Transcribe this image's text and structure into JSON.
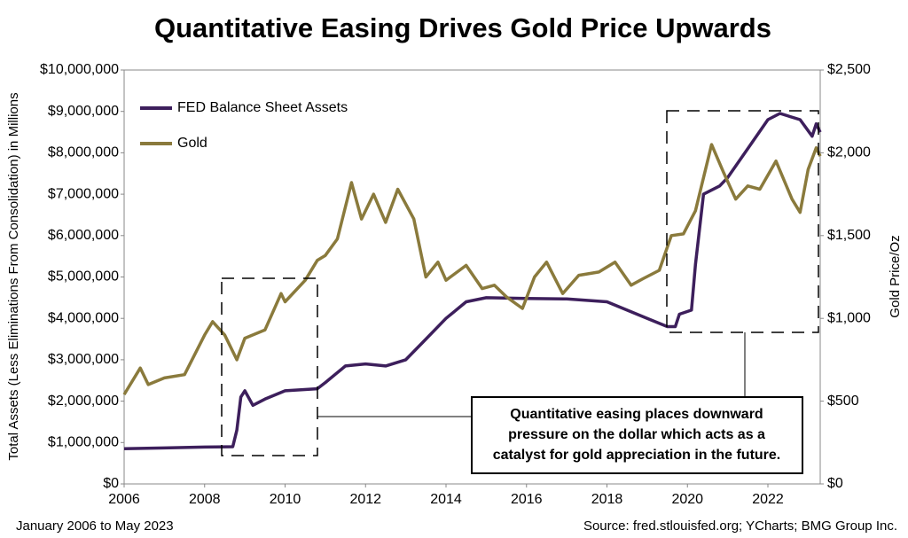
{
  "chart_data": {
    "type": "line",
    "title": "Quantitative Easing Drives Gold Price Upwards",
    "y_label": "Total Assets (Less Eliminations From Consolidation) in Millions",
    "y2_label": "Gold Price/Oz",
    "date_range": "January 2006 to May 2023",
    "source": "Source: fred.stlouisfed.org; YCharts; BMG Group Inc.",
    "annotation": [
      "Quantitative easing places downward",
      "pressure on the dollar which acts as a",
      "catalyst for gold appreciation in the future."
    ],
    "xlim": [
      2006,
      2023.3
    ],
    "xticks": [
      2006,
      2008,
      2010,
      2012,
      2014,
      2016,
      2018,
      2020,
      2022
    ],
    "ylim": [
      0,
      10000000
    ],
    "yticks": [
      {
        "value": 0,
        "label": "$0"
      },
      {
        "value": 1000000,
        "label": "$1,000,000"
      },
      {
        "value": 2000000,
        "label": "$2,000,000"
      },
      {
        "value": 3000000,
        "label": "$3,000,000"
      },
      {
        "value": 4000000,
        "label": "$4,000,000"
      },
      {
        "value": 5000000,
        "label": "$5,000,000"
      },
      {
        "value": 6000000,
        "label": "$6,000,000"
      },
      {
        "value": 7000000,
        "label": "$7,000,000"
      },
      {
        "value": 8000000,
        "label": "$8,000,000"
      },
      {
        "value": 9000000,
        "label": "$9,000,000"
      },
      {
        "value": 10000000,
        "label": "$10,000,000"
      }
    ],
    "y2lim": [
      0,
      2500
    ],
    "y2ticks": [
      {
        "value": 0,
        "label": "$0"
      },
      {
        "value": 500,
        "label": "$500"
      },
      {
        "value": 1000,
        "label": "$1,000"
      },
      {
        "value": 1500,
        "label": "$1,500"
      },
      {
        "value": 2000,
        "label": "$2,000"
      },
      {
        "value": 2500,
        "label": "$2,500"
      }
    ],
    "series": [
      {
        "name": "FED Balance Sheet Assets",
        "color": "#3d1f5c",
        "axis": "y",
        "x": [
          2006.0,
          2007.0,
          2008.0,
          2008.7,
          2008.8,
          2008.9,
          2009.0,
          2009.2,
          2009.5,
          2010.0,
          2010.8,
          2011.0,
          2011.5,
          2012.0,
          2012.5,
          2013.0,
          2013.5,
          2014.0,
          2014.5,
          2015.0,
          2016.0,
          2017.0,
          2018.0,
          2018.5,
          2019.0,
          2019.5,
          2019.7,
          2019.8,
          2020.1,
          2020.2,
          2020.4,
          2020.8,
          2021.0,
          2021.5,
          2022.0,
          2022.3,
          2022.8,
          2023.1,
          2023.2,
          2023.3
        ],
        "values": [
          850000,
          870000,
          890000,
          900000,
          1300000,
          2100000,
          2250000,
          1900000,
          2050000,
          2250000,
          2300000,
          2450000,
          2850000,
          2900000,
          2850000,
          3000000,
          3500000,
          4000000,
          4400000,
          4500000,
          4480000,
          4470000,
          4400000,
          4200000,
          4000000,
          3800000,
          3800000,
          4100000,
          4200000,
          5300000,
          7000000,
          7200000,
          7400000,
          8100000,
          8800000,
          8950000,
          8800000,
          8400000,
          8700000,
          8500000
        ]
      },
      {
        "name": "Gold",
        "color": "#8a7a3c",
        "axis": "y2",
        "x": [
          2006.0,
          2006.4,
          2006.6,
          2007.0,
          2007.5,
          2008.0,
          2008.2,
          2008.5,
          2008.8,
          2009.0,
          2009.5,
          2009.9,
          2010.0,
          2010.5,
          2010.8,
          2011.0,
          2011.3,
          2011.65,
          2011.9,
          2012.2,
          2012.5,
          2012.8,
          2013.2,
          2013.5,
          2013.8,
          2014.0,
          2014.5,
          2014.9,
          2015.2,
          2015.5,
          2015.9,
          2016.2,
          2016.5,
          2016.9,
          2017.3,
          2017.8,
          2018.2,
          2018.6,
          2018.9,
          2019.3,
          2019.6,
          2019.9,
          2020.2,
          2020.6,
          2020.9,
          2021.2,
          2021.5,
          2021.8,
          2022.2,
          2022.6,
          2022.8,
          2023.0,
          2023.2,
          2023.3
        ],
        "values": [
          540,
          700,
          600,
          640,
          660,
          900,
          980,
          900,
          750,
          880,
          930,
          1150,
          1100,
          1230,
          1350,
          1380,
          1480,
          1820,
          1600,
          1750,
          1580,
          1780,
          1600,
          1250,
          1340,
          1230,
          1320,
          1180,
          1200,
          1130,
          1060,
          1250,
          1340,
          1150,
          1260,
          1280,
          1340,
          1200,
          1240,
          1290,
          1500,
          1510,
          1650,
          2050,
          1880,
          1720,
          1800,
          1780,
          1950,
          1720,
          1640,
          1900,
          2030,
          1980
        ]
      }
    ]
  }
}
